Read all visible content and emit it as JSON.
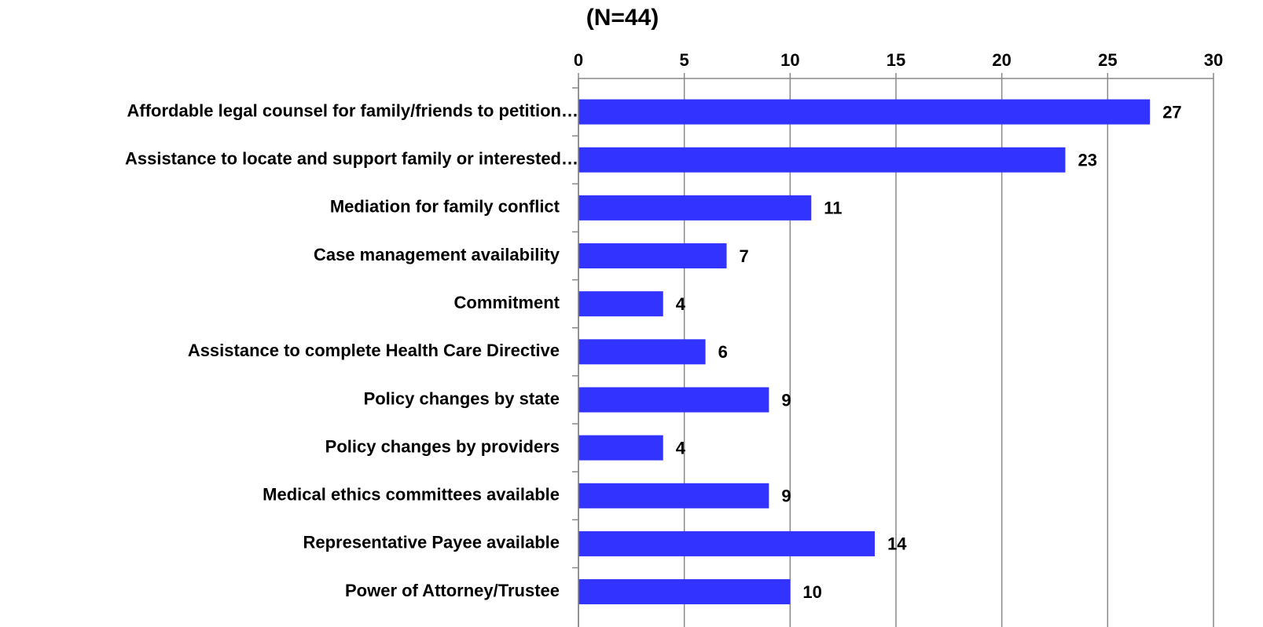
{
  "chart_data": {
    "type": "bar",
    "orientation": "horizontal",
    "title": "(N=44)",
    "categories": [
      "Affordable legal counsel for family/friends to petition…",
      "Assistance to locate and support family or interested…",
      "Mediation for family conflict",
      "Case management availability",
      "Commitment",
      "Assistance to complete Health Care Directive",
      "Policy changes by state",
      "Policy changes by providers",
      "Medical ethics committees available",
      "Representative Payee available",
      "Power of Attorney/Trustee"
    ],
    "values": [
      27,
      23,
      11,
      7,
      4,
      6,
      9,
      4,
      9,
      14,
      10
    ],
    "color": "#3333ff",
    "xlim": [
      0,
      30
    ],
    "xticks": [
      0,
      5,
      10,
      15,
      20,
      25,
      30
    ],
    "grid": true
  }
}
